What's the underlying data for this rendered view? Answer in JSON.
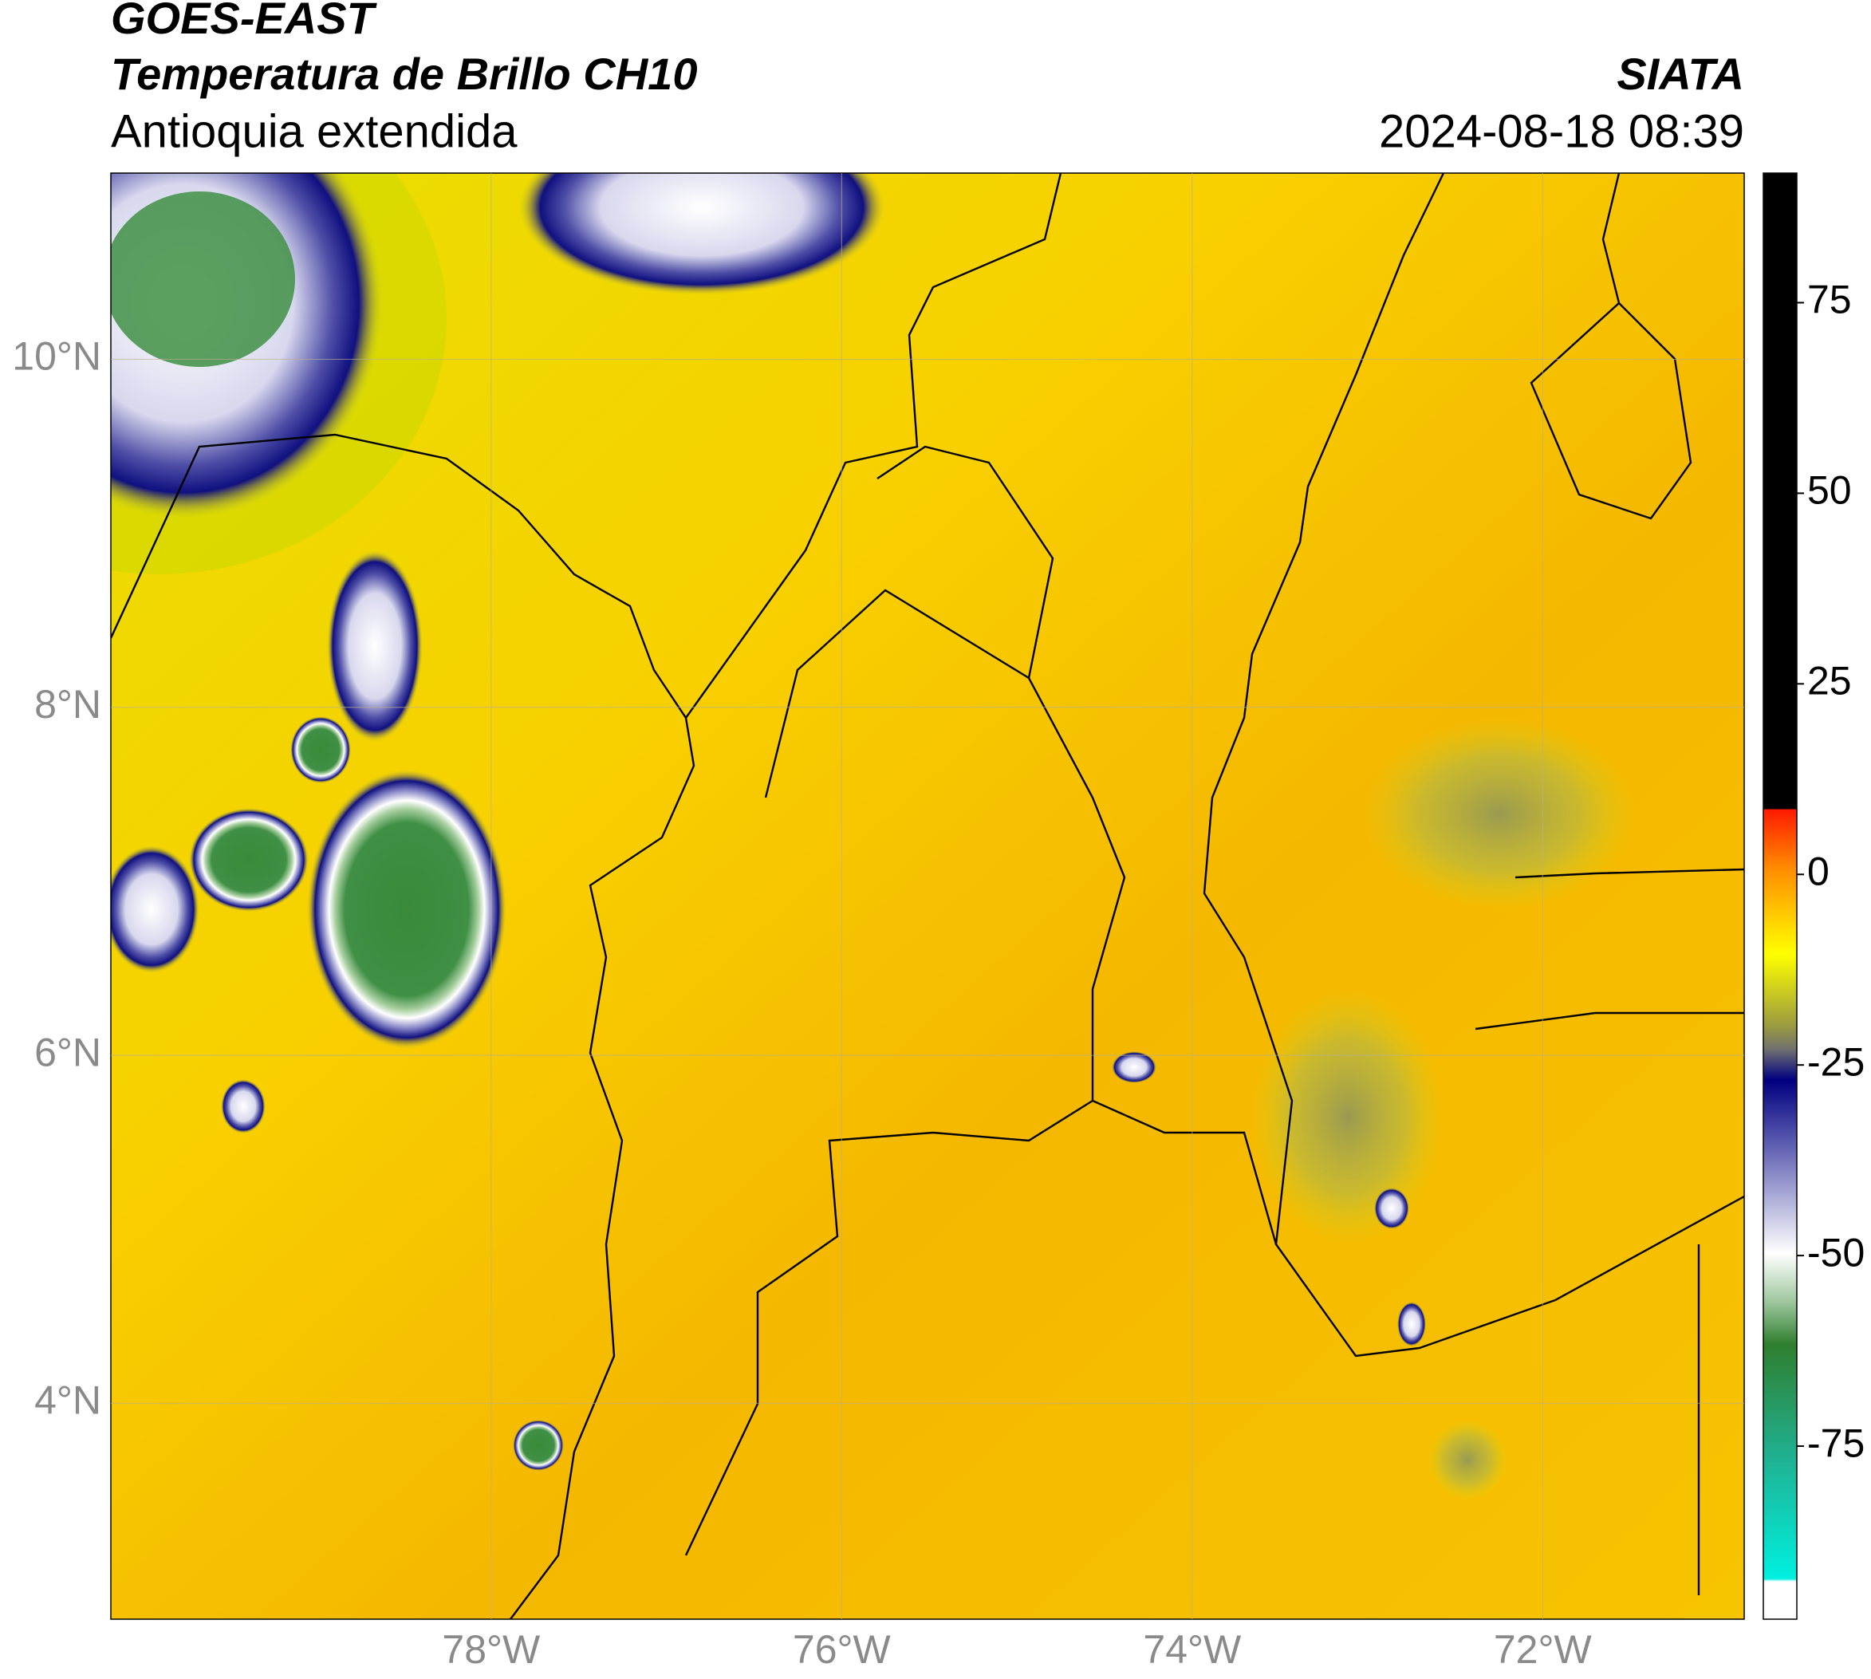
{
  "header": {
    "title": "GOES-EAST",
    "subtitle": "Temperatura de Brillo CH10",
    "region": "Antioquia extendida",
    "source": "SIATA",
    "datetime": "2024-08-18 08:39"
  },
  "map": {
    "lonlim": [
      -80.17,
      -70.85
    ],
    "latlim": [
      2.76,
      11.07
    ],
    "lonticks": [
      {
        "value": -78,
        "label": "78°W"
      },
      {
        "value": -76,
        "label": "76°W"
      },
      {
        "value": -74,
        "label": "74°W"
      },
      {
        "value": -72,
        "label": "72°W"
      }
    ],
    "latticks": [
      {
        "value": 10,
        "label": "10°N"
      },
      {
        "value": 8,
        "label": "8°N"
      },
      {
        "value": 6,
        "label": "6°N"
      },
      {
        "value": 4,
        "label": "4°N"
      }
    ],
    "grid": true
  },
  "colorbar": {
    "lim": [
      -97.7,
      92
    ],
    "ticks": [
      75,
      50,
      25,
      0,
      -25,
      -50,
      -75
    ]
  }
}
